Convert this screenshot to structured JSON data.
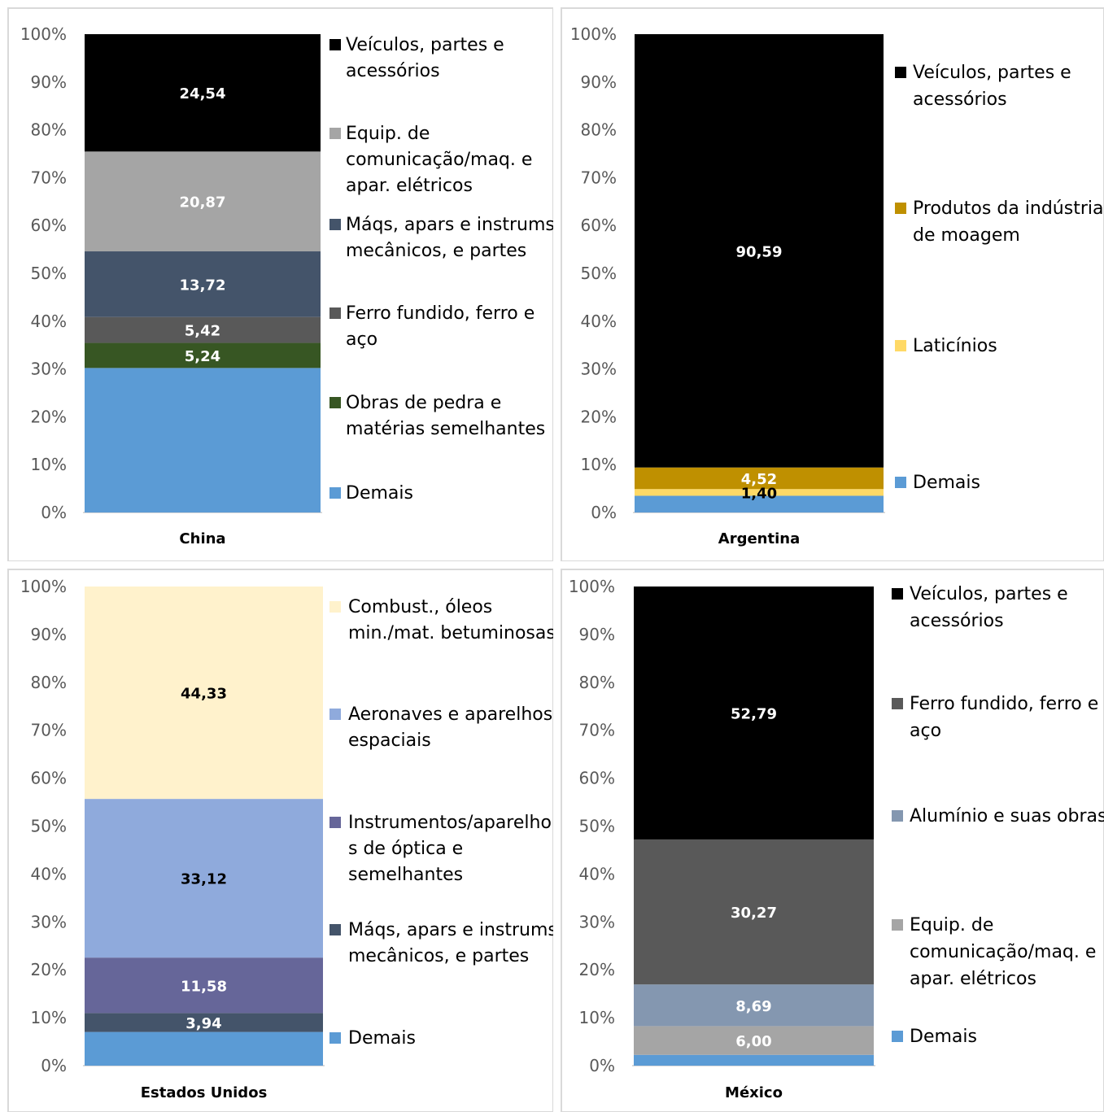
{
  "chart_data": [
    {
      "type": "bar",
      "stacked": true,
      "percent_axis": true,
      "category": "China",
      "ylim": [
        0,
        100
      ],
      "yticks": [
        "0%",
        "10%",
        "20%",
        "30%",
        "40%",
        "50%",
        "60%",
        "70%",
        "80%",
        "90%",
        "100%"
      ],
      "segments": [
        {
          "name": "Demais",
          "value": 30.21,
          "label": "",
          "color": "#5b9bd5",
          "label_color": "#ffffff"
        },
        {
          "name": "Obras de pedra e matérias semelhantes",
          "value": 5.24,
          "label": "5,24",
          "color": "#375623",
          "label_color": "#ffffff"
        },
        {
          "name": "Ferro fundido, ferro e aço",
          "value": 5.42,
          "label": "5,42",
          "color": "#595959",
          "label_color": "#ffffff"
        },
        {
          "name": "Máqs, apars e instrums mecânicos, e partes",
          "value": 13.72,
          "label": "13,72",
          "color": "#44546a",
          "label_color": "#ffffff"
        },
        {
          "name": "Equip. de comunicação/maq. e apar. elétricos",
          "value": 20.87,
          "label": "20,87",
          "color": "#a5a5a5",
          "label_color": "#ffffff"
        },
        {
          "name": "Veículos, partes e acessórios",
          "value": 24.54,
          "label": "24,54",
          "color": "#000000",
          "label_color": "#ffffff"
        }
      ],
      "legend": [
        {
          "lines": [
            "Veículos, partes e",
            "acessórios"
          ],
          "color": "#000000"
        },
        {
          "lines": [
            "Equip. de",
            "comunicação/maq. e",
            "apar. elétricos"
          ],
          "color": "#a5a5a5"
        },
        {
          "lines": [
            "Máqs, apars e instrums",
            "mecânicos, e partes"
          ],
          "color": "#44546a"
        },
        {
          "lines": [
            "Ferro fundido, ferro e",
            "aço"
          ],
          "color": "#595959"
        },
        {
          "lines": [
            "Obras de pedra e",
            "matérias semelhantes"
          ],
          "color": "#375623"
        },
        {
          "lines": [
            "Demais"
          ],
          "color": "#5b9bd5"
        }
      ]
    },
    {
      "type": "bar",
      "stacked": true,
      "percent_axis": true,
      "category": "Argentina",
      "ylim": [
        0,
        100
      ],
      "yticks": [
        "0%",
        "10%",
        "20%",
        "30%",
        "40%",
        "50%",
        "60%",
        "70%",
        "80%",
        "90%",
        "100%"
      ],
      "segments": [
        {
          "name": "Demais",
          "value": 3.49,
          "label": "",
          "color": "#5b9bd5",
          "label_color": "#000000"
        },
        {
          "name": "Laticínios",
          "value": 1.4,
          "label": "1,40",
          "color": "#ffd966",
          "label_color": "#000000"
        },
        {
          "name": "Produtos da indústria de moagem",
          "value": 4.52,
          "label": "4,52",
          "color": "#bf9000",
          "label_color": "#ffffff"
        },
        {
          "name": "Veículos, partes e acessórios",
          "value": 90.59,
          "label": "90,59",
          "color": "#000000",
          "label_color": "#ffffff"
        }
      ],
      "legend": [
        {
          "lines": [
            "Veículos, partes e",
            "acessórios"
          ],
          "color": "#000000"
        },
        {
          "lines": [
            "Produtos da indústria",
            "de moagem"
          ],
          "color": "#bf9000"
        },
        {
          "lines": [
            "Laticínios"
          ],
          "color": "#ffd966"
        },
        {
          "lines": [
            "Demais"
          ],
          "color": "#5b9bd5"
        }
      ]
    },
    {
      "type": "bar",
      "stacked": true,
      "percent_axis": true,
      "category": "Estados Unidos",
      "ylim": [
        0,
        100
      ],
      "yticks": [
        "0%",
        "10%",
        "20%",
        "30%",
        "40%",
        "50%",
        "60%",
        "70%",
        "80%",
        "90%",
        "100%"
      ],
      "segments": [
        {
          "name": "Demais",
          "value": 7.03,
          "label": "",
          "color": "#5b9bd5",
          "label_color": "#ffffff"
        },
        {
          "name": "Máqs, apars e instrums mecânicos, e partes",
          "value": 3.94,
          "label": "3,94",
          "color": "#44546a",
          "label_color": "#ffffff"
        },
        {
          "name": "Instrumentos/aparelhos de óptica e semelhantes",
          "value": 11.58,
          "label": "11,58",
          "color": "#666699",
          "label_color": "#ffffff"
        },
        {
          "name": "Aeronaves e aparelhos espaciais",
          "value": 33.12,
          "label": "33,12",
          "color": "#8faadc",
          "label_color": "#000000"
        },
        {
          "name": "Combust., óleos min./mat. betuminosas",
          "value": 44.33,
          "label": "44,33",
          "color": "#fff2cc",
          "label_color": "#000000"
        }
      ],
      "legend": [
        {
          "lines": [
            "Combust., óleos",
            "min./mat. betuminosas"
          ],
          "color": "#fff2cc"
        },
        {
          "lines": [
            "Aeronaves e aparelhos",
            "espaciais"
          ],
          "color": "#8faadc"
        },
        {
          "lines": [
            "Instrumentos/aparelho",
            "s de óptica e",
            "semelhantes"
          ],
          "color": "#666699"
        },
        {
          "lines": [
            "Máqs, apars e instrums",
            "mecânicos, e partes"
          ],
          "color": "#44546a"
        },
        {
          "lines": [
            "Demais"
          ],
          "color": "#5b9bd5"
        }
      ]
    },
    {
      "type": "bar",
      "stacked": true,
      "percent_axis": true,
      "category": "México",
      "ylim": [
        0,
        100
      ],
      "yticks": [
        "0%",
        "10%",
        "20%",
        "30%",
        "40%",
        "50%",
        "60%",
        "70%",
        "80%",
        "90%",
        "100%"
      ],
      "segments": [
        {
          "name": "Demais",
          "value": 2.25,
          "label": "",
          "color": "#5b9bd5",
          "label_color": "#ffffff"
        },
        {
          "name": "Equip. de comunicação/maq. e apar. elétricos",
          "value": 6.0,
          "label": "6,00",
          "color": "#a5a5a5",
          "label_color": "#ffffff"
        },
        {
          "name": "Alumínio e suas obras",
          "value": 8.69,
          "label": "8,69",
          "color": "#8497b0",
          "label_color": "#ffffff"
        },
        {
          "name": "Ferro fundido, ferro e aço",
          "value": 30.27,
          "label": "30,27",
          "color": "#595959",
          "label_color": "#ffffff"
        },
        {
          "name": "Veículos, partes e acessórios",
          "value": 52.79,
          "label": "52,79",
          "color": "#000000",
          "label_color": "#ffffff"
        }
      ],
      "legend": [
        {
          "lines": [
            "Veículos, partes e",
            "acessórios"
          ],
          "color": "#000000"
        },
        {
          "lines": [
            "Ferro fundido, ferro e",
            "aço"
          ],
          "color": "#595959"
        },
        {
          "lines": [
            "Alumínio e suas obras"
          ],
          "color": "#8497b0"
        },
        {
          "lines": [
            "Equip. de",
            "comunicação/maq. e",
            "apar. elétricos"
          ],
          "color": "#a5a5a5"
        },
        {
          "lines": [
            "Demais"
          ],
          "color": "#5b9bd5"
        }
      ]
    }
  ]
}
